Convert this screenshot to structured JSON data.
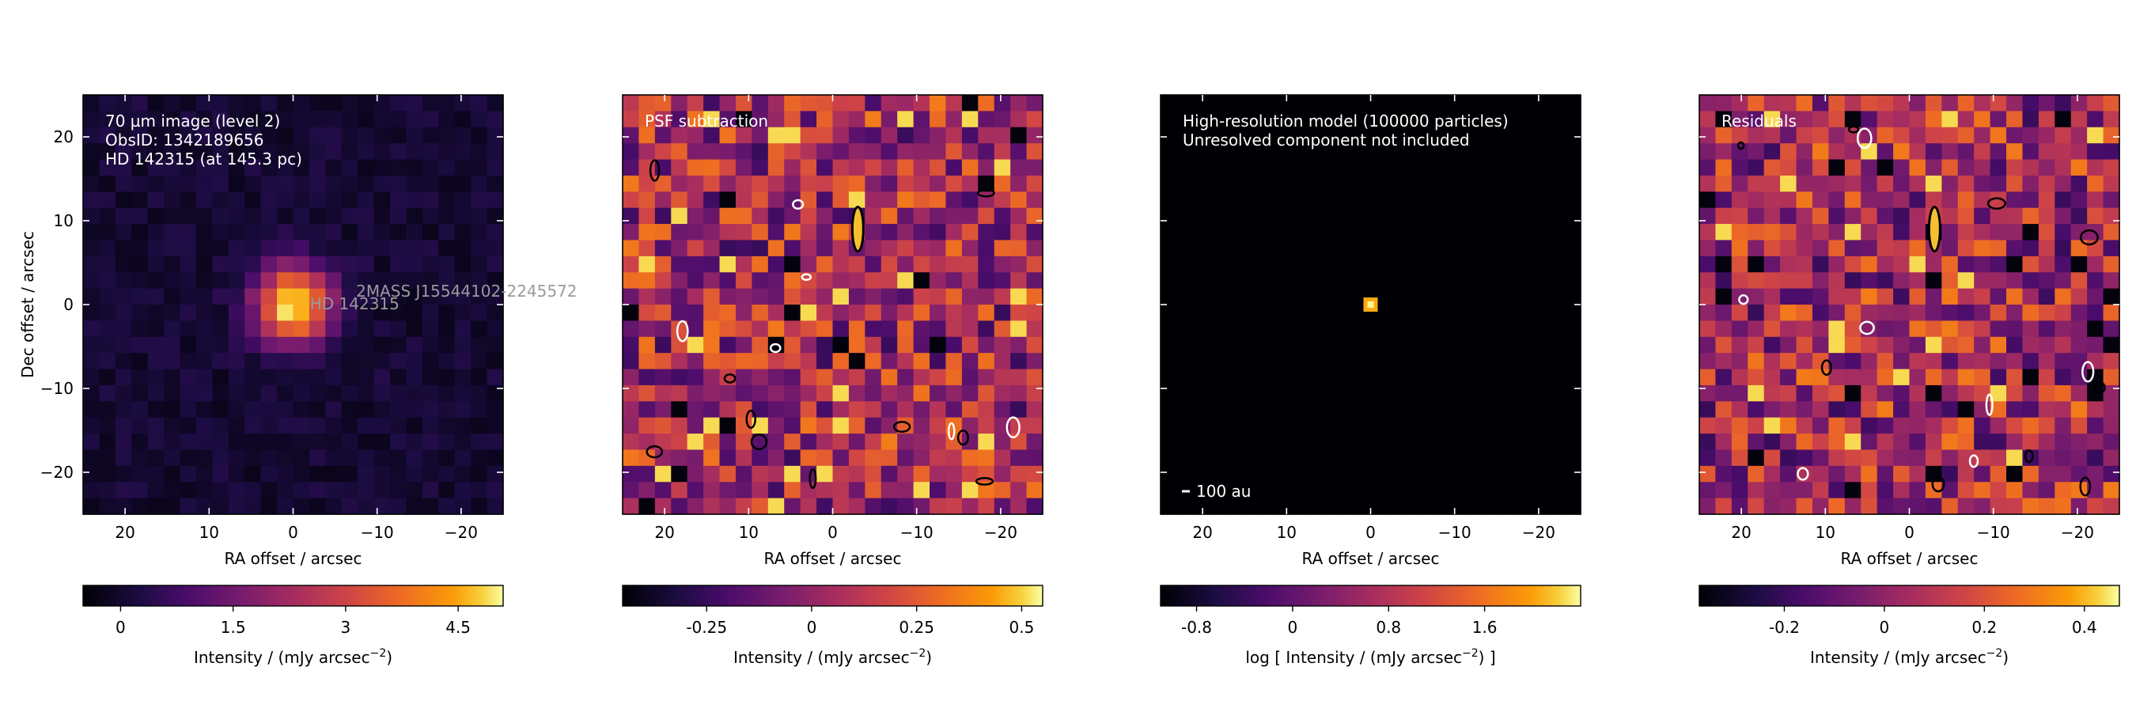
{
  "chart_data": [
    {
      "type": "heatmap",
      "panel_text": [
        "70 µm image (level 2)",
        "ObsID: 1342189656",
        "HD 142315 (at 145.3 pc)"
      ],
      "source_labels": [
        "HD 142315",
        "2MASS J15544102-2245572"
      ],
      "xlabel": "RA offset / arcsec",
      "ylabel": "Dec offset / arcsec",
      "xlim": [
        25,
        -25
      ],
      "ylim": [
        -25,
        25
      ],
      "xticks": [
        20,
        10,
        0,
        -10,
        -20
      ],
      "yticks": [
        20,
        10,
        0,
        -10,
        -20
      ],
      "colormap": "inferno",
      "colorbar": {
        "label": "Intensity / (mJy arcsec",
        "label_sup": "−2",
        "label_suffix": ")",
        "range": [
          -0.5,
          5.1
        ],
        "ticks": [
          0,
          1.5,
          3,
          4.5
        ],
        "tick_labels": [
          "0",
          "1.5",
          "3",
          "4.5"
        ]
      },
      "peak": {
        "x": 0,
        "y": 0,
        "value": 5.0
      }
    },
    {
      "type": "heatmap",
      "panel_text": [
        "PSF subtraction"
      ],
      "xlabel": "RA offset / arcsec",
      "xlim": [
        25,
        -25
      ],
      "ylim": [
        -25,
        25
      ],
      "xticks": [
        20,
        10,
        0,
        -10,
        -20
      ],
      "colormap": "inferno",
      "contours": true,
      "colorbar": {
        "label": "Intensity / (mJy arcsec",
        "label_sup": "−2",
        "label_suffix": ")",
        "range": [
          -0.45,
          0.55
        ],
        "ticks": [
          -0.25,
          0,
          0.25,
          0.5
        ],
        "tick_labels": [
          "-0.25",
          "0",
          "0.25",
          "0.5"
        ]
      }
    },
    {
      "type": "heatmap",
      "panel_text": [
        "High-resolution model (100000 particles)",
        "Unresolved component not included"
      ],
      "scalebar_label": "100 au",
      "xlabel": "RA offset / arcsec",
      "xlim": [
        25,
        -25
      ],
      "ylim": [
        -25,
        25
      ],
      "xticks": [
        20,
        10,
        0,
        -10,
        -20
      ],
      "colormap": "inferno",
      "colorbar": {
        "label": "log [ Intensity / (mJy arcsec",
        "label_sup": "−2",
        "label_suffix": ") ]",
        "range": [
          -1.1,
          2.4
        ],
        "ticks": [
          -0.8,
          0,
          0.8,
          1.6
        ],
        "tick_labels": [
          "-0.8",
          "0",
          "0.8",
          "1.6"
        ]
      }
    },
    {
      "type": "heatmap",
      "panel_text": [
        "Residuals"
      ],
      "xlabel": "RA offset / arcsec",
      "xlim": [
        25,
        -25
      ],
      "ylim": [
        -25,
        25
      ],
      "xticks": [
        20,
        10,
        0,
        -10,
        -20
      ],
      "colormap": "inferno",
      "contours": true,
      "colorbar": {
        "label": "Intensity / (mJy arcsec",
        "label_sup": "−2",
        "label_suffix": ")",
        "range": [
          -0.37,
          0.47
        ],
        "ticks": [
          -0.2,
          0,
          0.2,
          0.4
        ],
        "tick_labels": [
          "-0.2",
          "0",
          "0.2",
          "0.4"
        ]
      }
    }
  ]
}
